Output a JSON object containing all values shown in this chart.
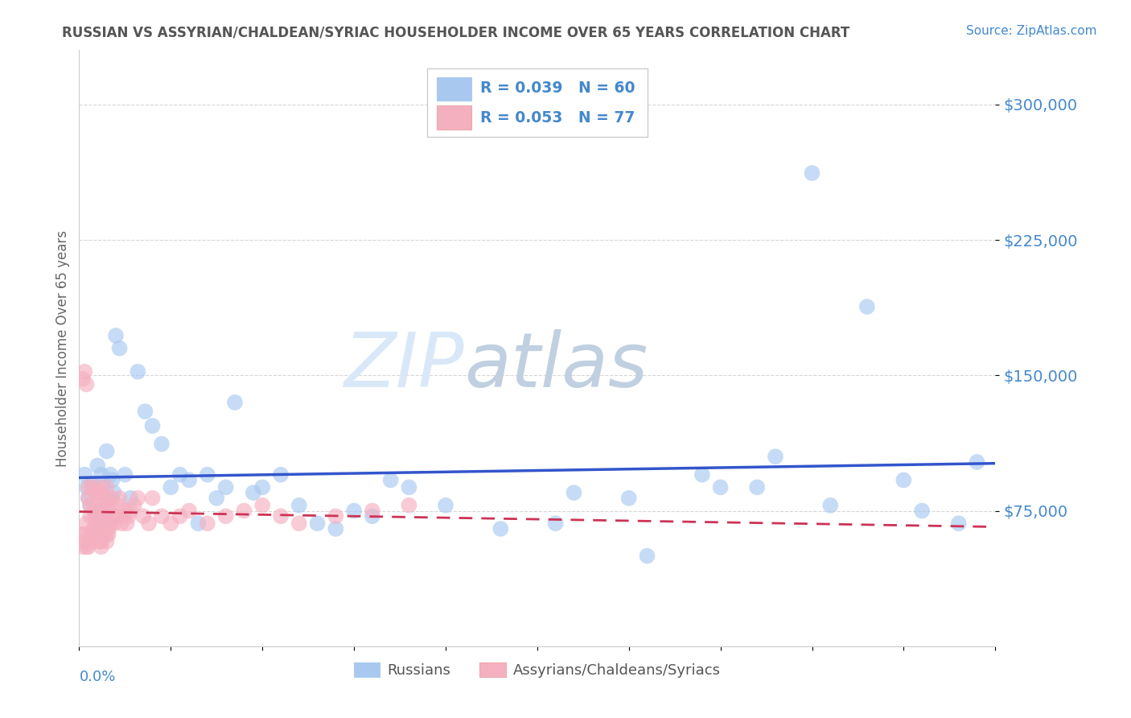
{
  "title": "RUSSIAN VS ASSYRIAN/CHALDEAN/SYRIAC HOUSEHOLDER INCOME OVER 65 YEARS CORRELATION CHART",
  "source": "Source: ZipAtlas.com",
  "ylabel": "Householder Income Over 65 years",
  "legend_label_blue": "Russians",
  "legend_label_pink": "Assyrians/Chaldeans/Syriacs",
  "R_blue": "R = 0.039",
  "N_blue": "N = 60",
  "R_pink": "R = 0.053",
  "N_pink": "N = 77",
  "y_ticks": [
    75000,
    150000,
    225000,
    300000
  ],
  "y_tick_labels": [
    "$75,000",
    "$150,000",
    "$225,000",
    "$300,000"
  ],
  "xlim": [
    0.0,
    0.5
  ],
  "ylim": [
    0,
    330000
  ],
  "background_color": "#ffffff",
  "plot_bg_color": "#ffffff",
  "grid_color": "#cccccc",
  "blue_color": "#a8c8f0",
  "pink_color": "#f5b0c0",
  "blue_line_color": "#3355cc",
  "pink_line_color": "#cc3355",
  "title_color": "#555555",
  "axis_label_color": "#4488cc",
  "watermark_zip_color": "#d8e8f8",
  "watermark_atlas_color": "#c0d0e0",
  "russians_x": [
    0.003,
    0.004,
    0.005,
    0.006,
    0.007,
    0.008,
    0.009,
    0.01,
    0.011,
    0.012,
    0.013,
    0.014,
    0.015,
    0.016,
    0.017,
    0.018,
    0.019,
    0.02,
    0.022,
    0.025,
    0.028,
    0.032,
    0.036,
    0.04,
    0.045,
    0.05,
    0.055,
    0.06,
    0.07,
    0.08,
    0.095,
    0.11,
    0.13,
    0.15,
    0.17,
    0.2,
    0.23,
    0.26,
    0.3,
    0.34,
    0.37,
    0.4,
    0.43,
    0.46,
    0.48,
    0.49,
    0.12,
    0.14,
    0.16,
    0.18,
    0.075,
    0.085,
    0.1,
    0.27,
    0.31,
    0.35,
    0.38,
    0.41,
    0.45,
    0.065
  ],
  "russians_y": [
    95000,
    88000,
    82000,
    78000,
    90000,
    88000,
    75000,
    100000,
    70000,
    95000,
    88000,
    75000,
    108000,
    82000,
    95000,
    92000,
    85000,
    172000,
    165000,
    95000,
    82000,
    152000,
    130000,
    122000,
    112000,
    88000,
    95000,
    92000,
    95000,
    88000,
    85000,
    95000,
    68000,
    75000,
    92000,
    78000,
    65000,
    68000,
    82000,
    95000,
    88000,
    262000,
    188000,
    75000,
    68000,
    102000,
    78000,
    65000,
    72000,
    88000,
    82000,
    135000,
    88000,
    85000,
    50000,
    88000,
    105000,
    78000,
    92000,
    68000
  ],
  "assyrians_x": [
    0.001,
    0.002,
    0.003,
    0.003,
    0.004,
    0.004,
    0.005,
    0.005,
    0.006,
    0.006,
    0.007,
    0.007,
    0.008,
    0.008,
    0.009,
    0.009,
    0.01,
    0.01,
    0.011,
    0.011,
    0.012,
    0.012,
    0.013,
    0.013,
    0.014,
    0.014,
    0.015,
    0.015,
    0.016,
    0.016,
    0.017,
    0.018,
    0.019,
    0.02,
    0.021,
    0.022,
    0.023,
    0.024,
    0.025,
    0.026,
    0.027,
    0.028,
    0.03,
    0.032,
    0.035,
    0.038,
    0.04,
    0.045,
    0.05,
    0.055,
    0.06,
    0.07,
    0.08,
    0.09,
    0.1,
    0.11,
    0.12,
    0.14,
    0.16,
    0.18,
    0.002,
    0.003,
    0.004,
    0.005,
    0.006,
    0.007,
    0.008,
    0.009,
    0.01,
    0.011,
    0.012,
    0.013,
    0.014,
    0.015,
    0.016,
    0.017,
    0.018
  ],
  "assyrians_y": [
    62000,
    148000,
    58000,
    152000,
    55000,
    145000,
    82000,
    88000,
    72000,
    78000,
    60000,
    88000,
    65000,
    75000,
    85000,
    72000,
    62000,
    82000,
    75000,
    88000,
    58000,
    85000,
    68000,
    78000,
    72000,
    82000,
    62000,
    88000,
    75000,
    65000,
    78000,
    82000,
    68000,
    72000,
    78000,
    82000,
    68000,
    72000,
    75000,
    68000,
    72000,
    75000,
    78000,
    82000,
    72000,
    68000,
    82000,
    72000,
    68000,
    72000,
    75000,
    68000,
    72000,
    75000,
    78000,
    72000,
    68000,
    72000,
    75000,
    78000,
    55000,
    62000,
    68000,
    55000,
    58000,
    62000,
    65000,
    70000,
    62000,
    58000,
    55000,
    62000,
    68000,
    58000,
    62000,
    68000,
    72000
  ]
}
